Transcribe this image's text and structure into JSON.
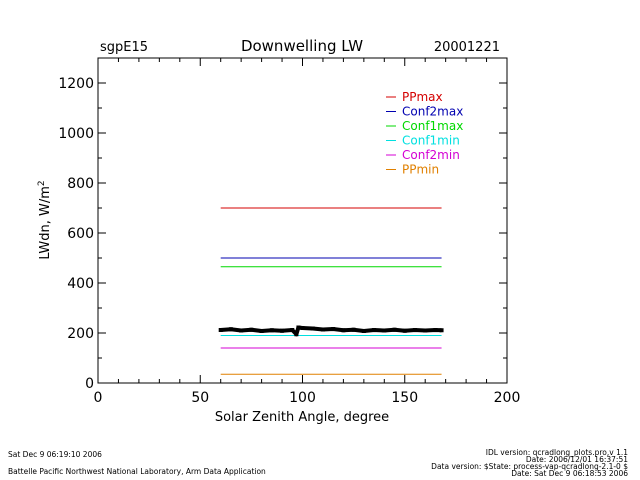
{
  "header": {
    "left": "sgpE15",
    "title": "Downwelling LW",
    "right": "20001221"
  },
  "footer": {
    "date_generated": "Sat Dec  9 06:19:10 2006",
    "lab": "Battelle Pacific Northwest National Laboratory, Arm Data Application",
    "idl_version": "IDL version: qcradlong_plots.pro,v 1.1",
    "file_date": "Date: 2006/12/01 16:37:51",
    "data_version": "Data version: $State: process-vap-qcradlong-2.1-0 $",
    "data_date": "Date: Sat Dec  9 06:18:53 2006"
  },
  "chart_data": {
    "type": "line",
    "title": "Downwelling LW",
    "xlabel": "Solar Zenith Angle, degree",
    "ylabel": "LWdn, W/m",
    "ylabel_superscript": "2",
    "xlim": [
      0,
      200
    ],
    "ylim": [
      0,
      1300
    ],
    "xticks": [
      0,
      50,
      100,
      150,
      200
    ],
    "yticks": [
      0,
      200,
      400,
      600,
      800,
      1000,
      1200
    ],
    "grid": false,
    "legend_position": "top-right",
    "series": [
      {
        "name": "PPmax",
        "color": "#d40000",
        "x": [
          60,
          168
        ],
        "y": [
          700,
          700
        ]
      },
      {
        "name": "Conf2max",
        "color": "#0000b0",
        "x": [
          60,
          168
        ],
        "y": [
          500,
          500
        ]
      },
      {
        "name": "Conf1max",
        "color": "#00d800",
        "x": [
          60,
          168
        ],
        "y": [
          465,
          465
        ]
      },
      {
        "name": "Conf1min",
        "color": "#00e0e0",
        "x": [
          60,
          168
        ],
        "y": [
          190,
          190
        ]
      },
      {
        "name": "Conf2min",
        "color": "#d400d4",
        "x": [
          60,
          168
        ],
        "y": [
          140,
          140
        ]
      },
      {
        "name": "PPmin",
        "color": "#e08000",
        "x": [
          60,
          168
        ],
        "y": [
          35,
          35
        ]
      }
    ],
    "observed": {
      "color": "#000000",
      "x": [
        60,
        65,
        70,
        75,
        80,
        85,
        90,
        95,
        97,
        98,
        100,
        105,
        110,
        115,
        120,
        125,
        130,
        135,
        140,
        145,
        150,
        155,
        160,
        165,
        168
      ],
      "y": [
        212,
        215,
        210,
        213,
        208,
        211,
        209,
        212,
        195,
        222,
        220,
        218,
        214,
        216,
        211,
        213,
        208,
        212,
        210,
        213,
        209,
        212,
        210,
        212,
        211
      ]
    }
  }
}
